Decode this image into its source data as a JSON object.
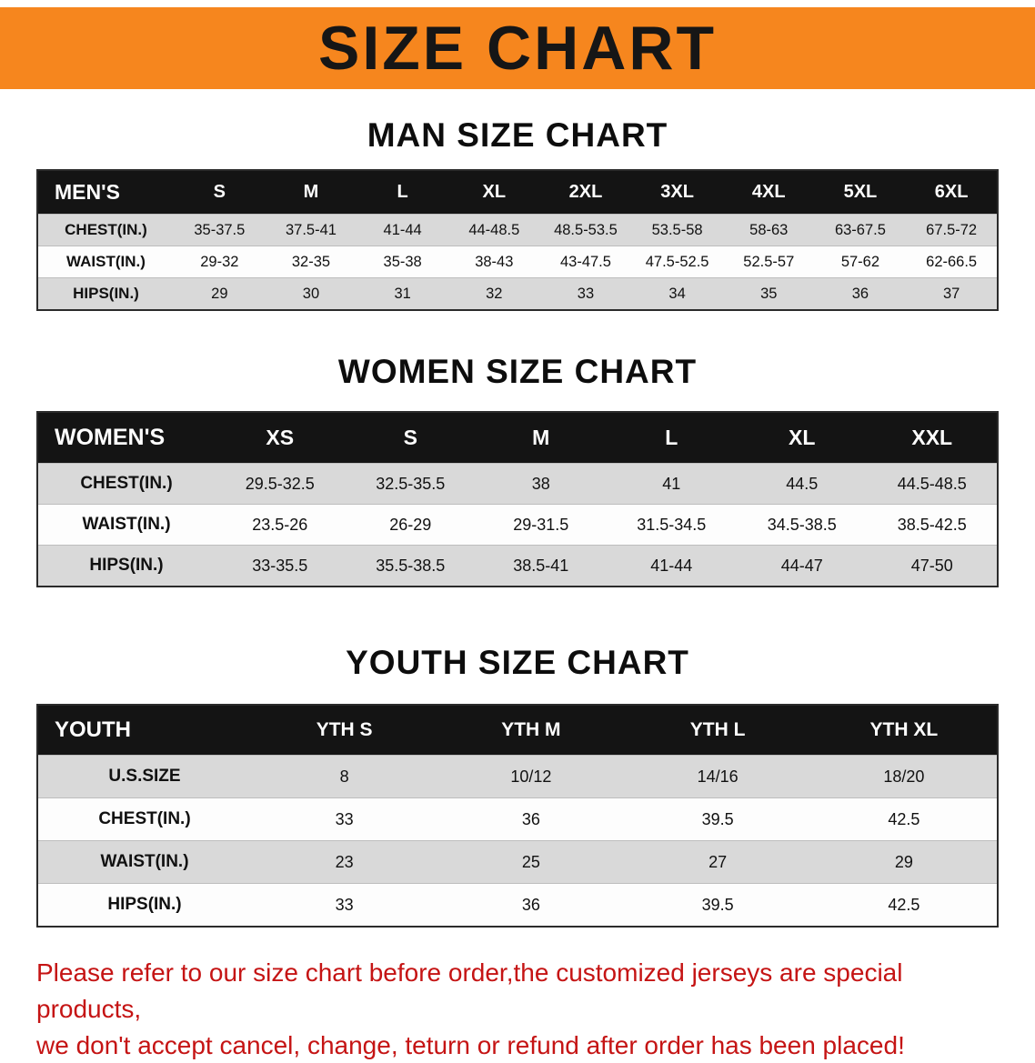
{
  "colors": {
    "banner_orange": "#f6861e",
    "header_black": "#141414",
    "row_gray": "#d9d9d9",
    "disclaimer_red": "#c51414"
  },
  "banner": {
    "title": "SIZE CHART"
  },
  "men": {
    "heading": "MAN SIZE CHART",
    "label": "MEN'S",
    "sizes": [
      "S",
      "M",
      "L",
      "XL",
      "2XL",
      "3XL",
      "4XL",
      "5XL",
      "6XL"
    ],
    "rows": [
      {
        "label": "CHEST(IN.)",
        "values": [
          "35-37.5",
          "37.5-41",
          "41-44",
          "44-48.5",
          "48.5-53.5",
          "53.5-58",
          "58-63",
          "63-67.5",
          "67.5-72"
        ]
      },
      {
        "label": "WAIST(IN.)",
        "values": [
          "29-32",
          "32-35",
          "35-38",
          "38-43",
          "43-47.5",
          "47.5-52.5",
          "52.5-57",
          "57-62",
          "62-66.5"
        ]
      },
      {
        "label": "HIPS(IN.)",
        "values": [
          "29",
          "30",
          "31",
          "32",
          "33",
          "34",
          "35",
          "36",
          "37"
        ]
      }
    ]
  },
  "women": {
    "heading": "WOMEN SIZE CHART",
    "label": "WOMEN'S",
    "sizes": [
      "XS",
      "S",
      "M",
      "L",
      "XL",
      "XXL"
    ],
    "rows": [
      {
        "label": "CHEST(IN.)",
        "values": [
          "29.5-32.5",
          "32.5-35.5",
          "38",
          "41",
          "44.5",
          "44.5-48.5"
        ]
      },
      {
        "label": "WAIST(IN.)",
        "values": [
          "23.5-26",
          "26-29",
          "29-31.5",
          "31.5-34.5",
          "34.5-38.5",
          "38.5-42.5"
        ]
      },
      {
        "label": "HIPS(IN.)",
        "values": [
          "33-35.5",
          "35.5-38.5",
          "38.5-41",
          "41-44",
          "44-47",
          "47-50"
        ]
      }
    ]
  },
  "youth": {
    "heading": "YOUTH SIZE CHART",
    "label": "YOUTH",
    "sizes": [
      "YTH S",
      "YTH M",
      "YTH L",
      "YTH XL"
    ],
    "rows": [
      {
        "label": "U.S.SIZE",
        "values": [
          "8",
          "10/12",
          "14/16",
          "18/20"
        ]
      },
      {
        "label": "CHEST(IN.)",
        "values": [
          "33",
          "36",
          "39.5",
          "42.5"
        ]
      },
      {
        "label": "WAIST(IN.)",
        "values": [
          "23",
          "25",
          "27",
          "29"
        ]
      },
      {
        "label": "HIPS(IN.)",
        "values": [
          "33",
          "36",
          "39.5",
          "42.5"
        ]
      }
    ]
  },
  "disclaimer": {
    "line1": "Please refer to our size chart before order,the customized jerseys are special products,",
    "line2": "we don't accept cancel, change, teturn or refund after order has been placed!"
  }
}
